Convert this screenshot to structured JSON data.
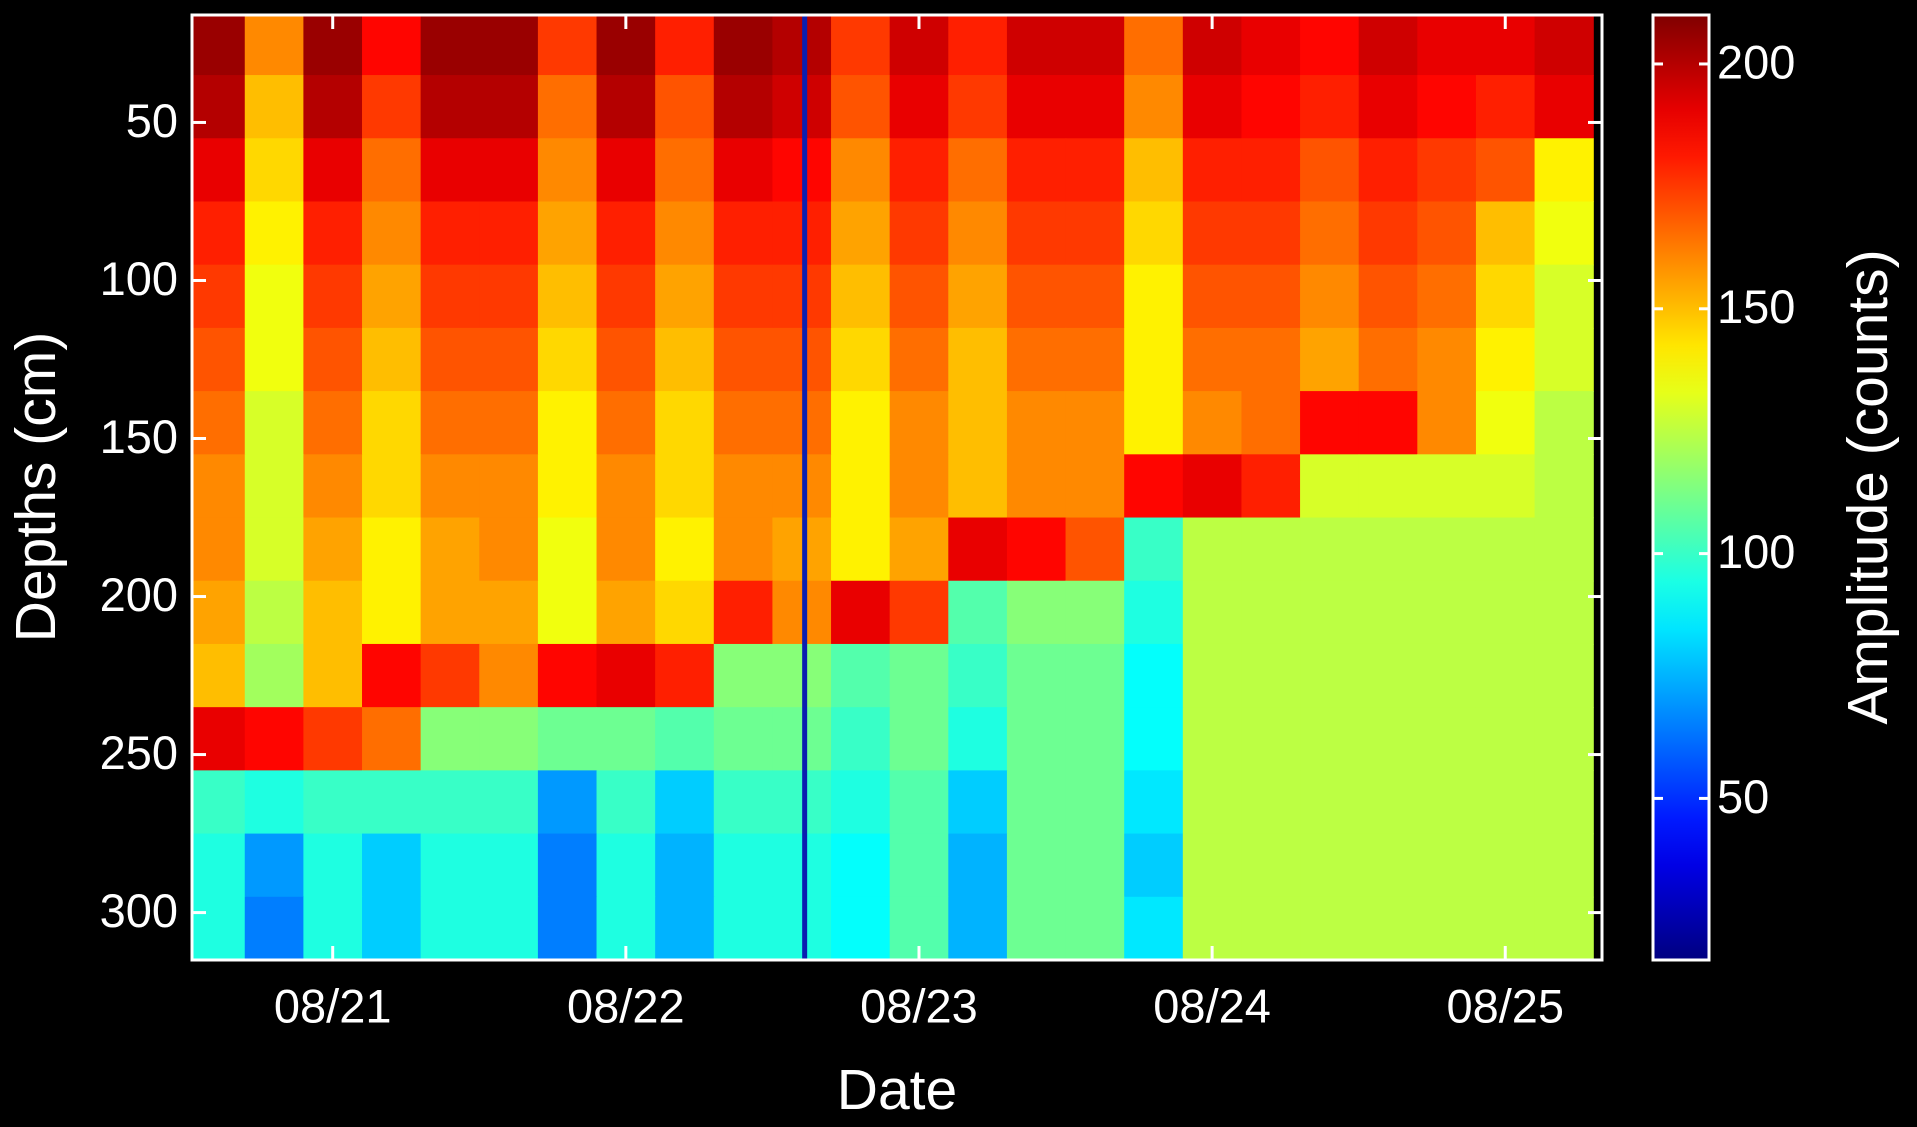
{
  "chart_data": {
    "type": "heatmap",
    "xlabel": "Date",
    "ylabel": "Depths (cm)",
    "colorbar_label": "Amplitude (counts)",
    "colormap": "jet",
    "x": [
      20.6,
      20.8,
      21.0,
      21.2,
      21.4,
      21.6,
      21.8,
      22.0,
      22.2,
      22.4,
      22.6,
      22.8,
      23.0,
      23.2,
      23.4,
      23.6,
      23.8,
      24.0,
      24.2,
      24.4,
      24.6,
      24.8,
      25.0,
      25.2
    ],
    "y": [
      25,
      45,
      65,
      85,
      105,
      125,
      145,
      165,
      185,
      205,
      225,
      245,
      265,
      285,
      305
    ],
    "z": [
      [
        205,
        160,
        205,
        185,
        205,
        205,
        175,
        205,
        180,
        205,
        200,
        175,
        195,
        180,
        195,
        195,
        165,
        195,
        190,
        185,
        195,
        190,
        190,
        195
      ],
      [
        200,
        150,
        200,
        175,
        200,
        200,
        165,
        200,
        170,
        200,
        195,
        170,
        190,
        175,
        190,
        190,
        160,
        190,
        185,
        180,
        190,
        185,
        180,
        190
      ],
      [
        190,
        145,
        190,
        165,
        190,
        190,
        160,
        190,
        165,
        190,
        185,
        160,
        180,
        165,
        180,
        180,
        150,
        180,
        180,
        170,
        180,
        175,
        170,
        140
      ],
      [
        180,
        140,
        180,
        160,
        180,
        180,
        155,
        180,
        160,
        180,
        180,
        155,
        175,
        160,
        175,
        175,
        145,
        175,
        175,
        165,
        175,
        170,
        150,
        135
      ],
      [
        175,
        135,
        175,
        155,
        175,
        175,
        150,
        175,
        155,
        175,
        175,
        150,
        170,
        155,
        170,
        170,
        140,
        170,
        170,
        160,
        170,
        165,
        145,
        130
      ],
      [
        170,
        135,
        170,
        150,
        170,
        170,
        145,
        170,
        150,
        170,
        170,
        145,
        165,
        150,
        165,
        165,
        140,
        165,
        165,
        155,
        165,
        160,
        140,
        130
      ],
      [
        165,
        130,
        165,
        145,
        165,
        165,
        140,
        165,
        145,
        165,
        165,
        140,
        160,
        150,
        160,
        160,
        140,
        160,
        165,
        185,
        185,
        160,
        135,
        125
      ],
      [
        160,
        130,
        160,
        145,
        160,
        160,
        140,
        160,
        145,
        160,
        160,
        140,
        160,
        150,
        160,
        160,
        185,
        190,
        180,
        130,
        130,
        130,
        130,
        125
      ],
      [
        160,
        130,
        155,
        140,
        155,
        160,
        135,
        160,
        140,
        160,
        155,
        140,
        155,
        190,
        185,
        170,
        100,
        125,
        125,
        125,
        125,
        125,
        125,
        125
      ],
      [
        155,
        125,
        150,
        140,
        155,
        155,
        135,
        155,
        145,
        180,
        160,
        190,
        175,
        105,
        115,
        115,
        95,
        125,
        125,
        125,
        125,
        125,
        125,
        125
      ],
      [
        150,
        120,
        150,
        185,
        175,
        160,
        185,
        190,
        180,
        115,
        115,
        105,
        110,
        100,
        110,
        110,
        90,
        125,
        125,
        125,
        125,
        125,
        125,
        125
      ],
      [
        190,
        185,
        175,
        165,
        115,
        115,
        110,
        110,
        105,
        110,
        110,
        100,
        110,
        95,
        110,
        110,
        90,
        125,
        125,
        125,
        125,
        125,
        125,
        125
      ],
      [
        100,
        95,
        100,
        100,
        100,
        100,
        70,
        100,
        80,
        100,
        100,
        95,
        105,
        80,
        110,
        110,
        85,
        125,
        125,
        125,
        125,
        125,
        125,
        125
      ],
      [
        95,
        70,
        95,
        80,
        95,
        95,
        65,
        95,
        75,
        95,
        95,
        90,
        105,
        75,
        110,
        110,
        80,
        125,
        125,
        125,
        125,
        125,
        125,
        125
      ],
      [
        95,
        65,
        95,
        80,
        95,
        95,
        65,
        95,
        75,
        95,
        95,
        90,
        105,
        75,
        110,
        110,
        85,
        125,
        125,
        125,
        125,
        125,
        125,
        125
      ]
    ],
    "xlim": [
      20.52,
      25.33
    ],
    "ylim": [
      315,
      16
    ],
    "xticks": [
      {
        "value": 21,
        "label": "08/21"
      },
      {
        "value": 22,
        "label": "08/22"
      },
      {
        "value": 23,
        "label": "08/23"
      },
      {
        "value": 24,
        "label": "08/24"
      },
      {
        "value": 25,
        "label": "08/25"
      }
    ],
    "yticks": [
      50,
      100,
      150,
      200,
      250,
      300
    ],
    "clim": [
      17,
      210
    ],
    "cticks": [
      50,
      100,
      150,
      200
    ],
    "vline": 22.61,
    "vline_color": "#0b1fb0"
  }
}
